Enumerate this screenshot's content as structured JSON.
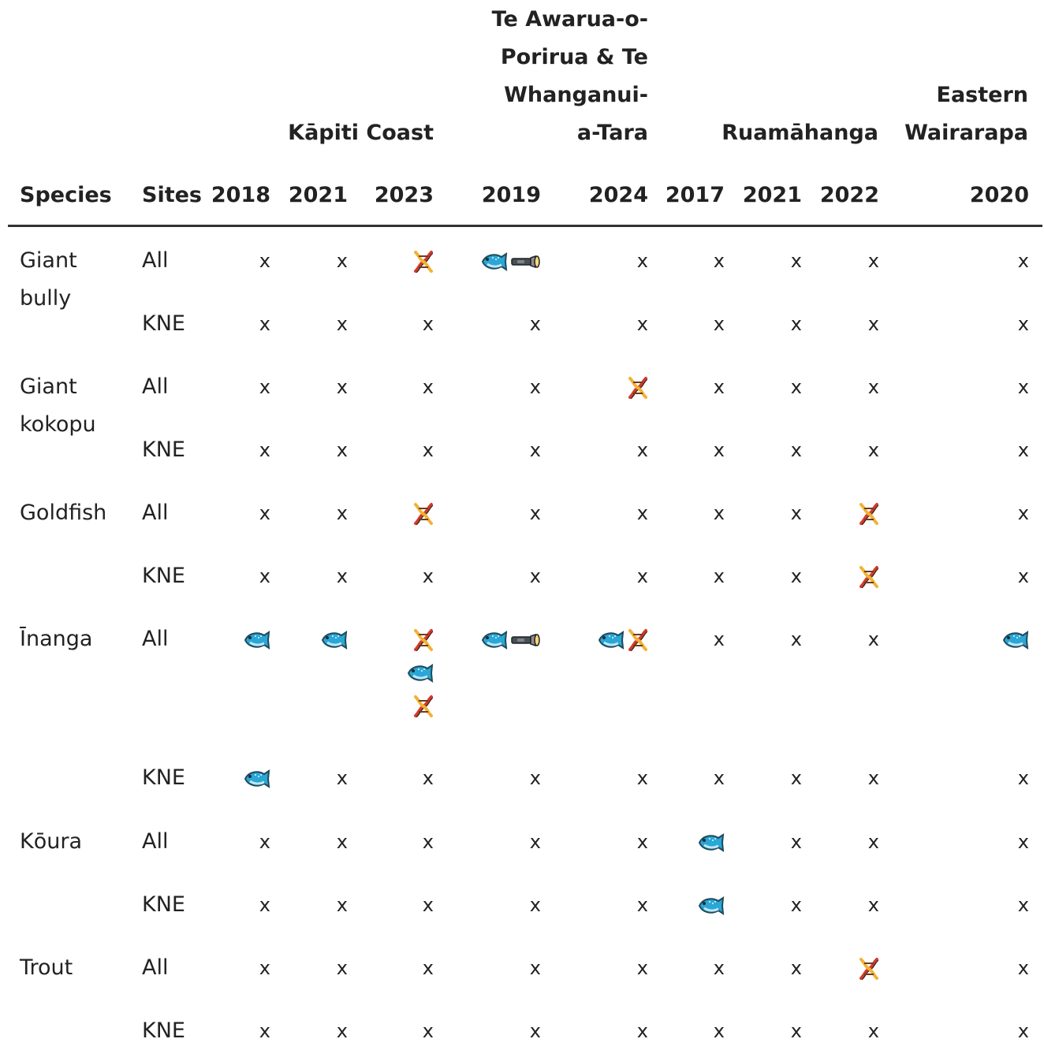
{
  "regions": [
    {
      "label": "Kāpiti Coast"
    },
    {
      "label": "Te Awarua-o-Porirua & Te Whanganui-a-Tara"
    },
    {
      "label": "Ruamāhanga"
    },
    {
      "label": "Eastern Wairarapa"
    }
  ],
  "headers": {
    "species": "Species",
    "sites": "Sites",
    "years": [
      "2018",
      "2021",
      "2023",
      "2019",
      "2024",
      "2017",
      "2021",
      "2022",
      "2020"
    ]
  },
  "symbols": {
    "absent": "x",
    "fish": "fish-icon",
    "dna": "dna-icon",
    "torch": "flashlight-icon"
  },
  "rows": [
    {
      "species": "Giant bully",
      "sites": "All",
      "cells": [
        [
          "x"
        ],
        [
          "x"
        ],
        [
          "dna"
        ],
        [
          "fish",
          "torch"
        ],
        [
          "x"
        ],
        [
          "x"
        ],
        [
          "x"
        ],
        [
          "x"
        ],
        [
          "x"
        ]
      ]
    },
    {
      "species": "",
      "sites": "KNE",
      "cells": [
        [
          "x"
        ],
        [
          "x"
        ],
        [
          "x"
        ],
        [
          "x"
        ],
        [
          "x"
        ],
        [
          "x"
        ],
        [
          "x"
        ],
        [
          "x"
        ],
        [
          "x"
        ]
      ]
    },
    {
      "species": "Giant kokopu",
      "sites": "All",
      "cells": [
        [
          "x"
        ],
        [
          "x"
        ],
        [
          "x"
        ],
        [
          "x"
        ],
        [
          "dna"
        ],
        [
          "x"
        ],
        [
          "x"
        ],
        [
          "x"
        ],
        [
          "x"
        ]
      ]
    },
    {
      "species": "",
      "sites": "KNE",
      "cells": [
        [
          "x"
        ],
        [
          "x"
        ],
        [
          "x"
        ],
        [
          "x"
        ],
        [
          "x"
        ],
        [
          "x"
        ],
        [
          "x"
        ],
        [
          "x"
        ],
        [
          "x"
        ]
      ]
    },
    {
      "species": "Goldfish",
      "sites": "All",
      "cells": [
        [
          "x"
        ],
        [
          "x"
        ],
        [
          "dna"
        ],
        [
          "x"
        ],
        [
          "x"
        ],
        [
          "x"
        ],
        [
          "x"
        ],
        [
          "dna"
        ],
        [
          "x"
        ]
      ]
    },
    {
      "species": "",
      "sites": "KNE",
      "cells": [
        [
          "x"
        ],
        [
          "x"
        ],
        [
          "x"
        ],
        [
          "x"
        ],
        [
          "x"
        ],
        [
          "x"
        ],
        [
          "x"
        ],
        [
          "dna"
        ],
        [
          "x"
        ]
      ]
    },
    {
      "species": "Īnanga",
      "sites": "All",
      "cells": [
        [
          "fish"
        ],
        [
          "fish"
        ],
        [
          "dna",
          "fish",
          "dna"
        ],
        [
          "fish",
          "torch"
        ],
        [
          "fish",
          "dna"
        ],
        [
          "x"
        ],
        [
          "x"
        ],
        [
          "x"
        ],
        [
          "fish"
        ]
      ]
    },
    {
      "species": "",
      "sites": "KNE",
      "cells": [
        [
          "fish"
        ],
        [
          "x"
        ],
        [
          "x"
        ],
        [
          "x"
        ],
        [
          "x"
        ],
        [
          "x"
        ],
        [
          "x"
        ],
        [
          "x"
        ],
        [
          "x"
        ]
      ]
    },
    {
      "species": "Kōura",
      "sites": "All",
      "cells": [
        [
          "x"
        ],
        [
          "x"
        ],
        [
          "x"
        ],
        [
          "x"
        ],
        [
          "x"
        ],
        [
          "fish"
        ],
        [
          "x"
        ],
        [
          "x"
        ],
        [
          "x"
        ]
      ]
    },
    {
      "species": "",
      "sites": "KNE",
      "cells": [
        [
          "x"
        ],
        [
          "x"
        ],
        [
          "x"
        ],
        [
          "x"
        ],
        [
          "x"
        ],
        [
          "fish"
        ],
        [
          "x"
        ],
        [
          "x"
        ],
        [
          "x"
        ]
      ]
    },
    {
      "species": "Trout",
      "sites": "All",
      "cells": [
        [
          "x"
        ],
        [
          "x"
        ],
        [
          "x"
        ],
        [
          "x"
        ],
        [
          "x"
        ],
        [
          "x"
        ],
        [
          "x"
        ],
        [
          "dna"
        ],
        [
          "x"
        ]
      ]
    },
    {
      "species": "",
      "sites": "KNE",
      "cells": [
        [
          "x"
        ],
        [
          "x"
        ],
        [
          "x"
        ],
        [
          "x"
        ],
        [
          "x"
        ],
        [
          "x"
        ],
        [
          "x"
        ],
        [
          "x"
        ],
        [
          "x"
        ]
      ]
    }
  ]
}
